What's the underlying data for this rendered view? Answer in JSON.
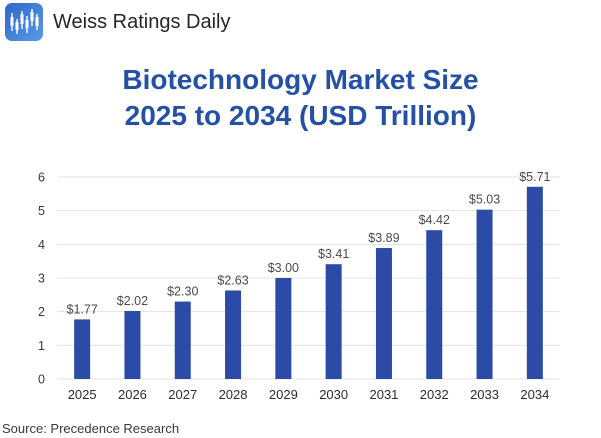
{
  "header": {
    "brand_name": "Weiss Ratings Daily",
    "logo_icon": "candlestick-chart-icon"
  },
  "source_text": "Source: Precedence Research",
  "colors": {
    "bar": "#2b4ba6",
    "title": "#2451a6",
    "grid": "#e3e3e3",
    "logo_start": "#2f66c8",
    "logo_end": "#5b9be6"
  },
  "chart_data": {
    "type": "bar",
    "title_line1": "Biotechnology Market Size",
    "title_line2": "2025 to 2034 (USD Trillion)",
    "xlabel": "",
    "ylabel": "",
    "categories": [
      "2025",
      "2026",
      "2027",
      "2028",
      "2029",
      "2030",
      "2031",
      "2032",
      "2033",
      "2034"
    ],
    "values": [
      1.77,
      2.02,
      2.3,
      2.63,
      3.0,
      3.41,
      3.89,
      4.42,
      5.03,
      5.71
    ],
    "data_labels": [
      "$1.77",
      "$2.02",
      "$2.30",
      "$2.63",
      "$3.00",
      "$3.41",
      "$3.89",
      "$4.42",
      "$5.03",
      "$5.71"
    ],
    "ylim": [
      0,
      6
    ],
    "yticks": [
      0,
      1,
      2,
      3,
      4,
      5,
      6
    ],
    "grid": true,
    "legend": "none"
  }
}
